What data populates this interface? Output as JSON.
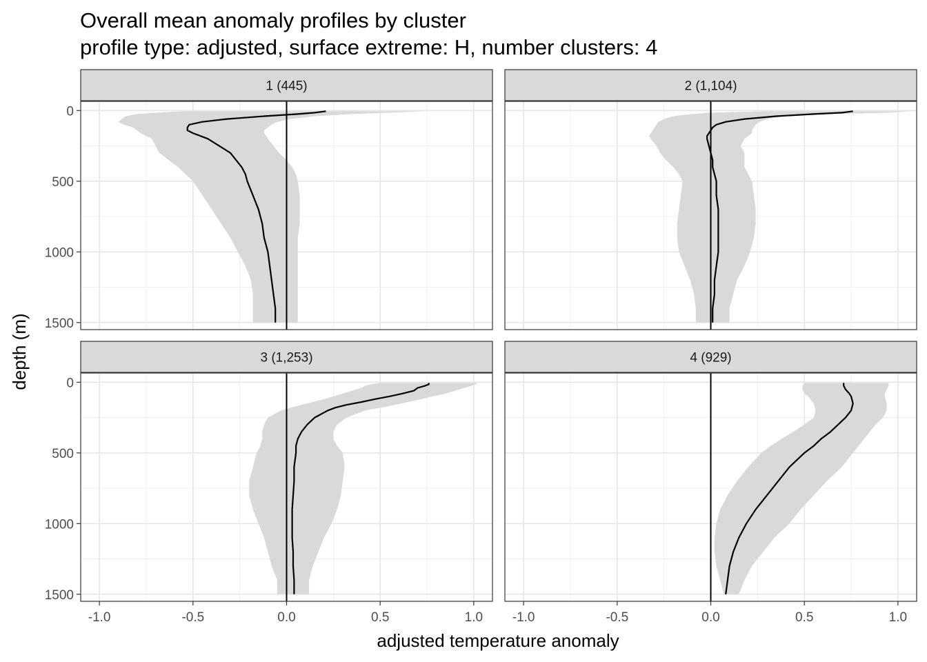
{
  "chart_data": {
    "type": "line",
    "title": "Overall mean anomaly profiles by cluster",
    "subtitle": "profile type: adjusted, surface extreme: H, number clusters: 4",
    "xlabel": "adjusted temperature anomaly",
    "ylabel": "depth (m)",
    "xlim": [
      -1.1,
      1.1
    ],
    "ylim": [
      1550,
      -65
    ],
    "y_reversed": true,
    "x_ticks": [
      -1.0,
      -0.5,
      0.0,
      0.5,
      1.0
    ],
    "x_tick_labels": [
      "-1.0",
      "-0.5",
      "0.0",
      "0.5",
      "1.0"
    ],
    "y_ticks": [
      0,
      500,
      1000,
      1500
    ],
    "y_tick_labels": [
      "0",
      "500",
      "1000",
      "1500"
    ],
    "grid": true,
    "reference_line_x": 0,
    "ribbon_color": "#d9d9d9",
    "line_color": "#000000",
    "strip_color": "#d9d9d9",
    "panels": [
      {
        "label": "1 (445)",
        "depth": [
          5,
          15,
          25,
          40,
          60,
          80,
          100,
          120,
          140,
          160,
          180,
          200,
          250,
          300,
          350,
          400,
          450,
          500,
          600,
          700,
          800,
          900,
          1000,
          1100,
          1200,
          1300,
          1400,
          1500
        ],
        "mean": [
          0.21,
          0.15,
          0.06,
          -0.12,
          -0.32,
          -0.45,
          -0.52,
          -0.53,
          -0.53,
          -0.5,
          -0.46,
          -0.42,
          -0.36,
          -0.3,
          -0.27,
          -0.24,
          -0.22,
          -0.21,
          -0.18,
          -0.15,
          -0.13,
          -0.12,
          -0.1,
          -0.09,
          -0.08,
          -0.07,
          -0.06,
          -0.06
        ],
        "lower": [
          -0.55,
          -0.7,
          -0.8,
          -0.86,
          -0.88,
          -0.9,
          -0.87,
          -0.82,
          -0.8,
          -0.78,
          -0.75,
          -0.72,
          -0.7,
          -0.68,
          -0.63,
          -0.58,
          -0.54,
          -0.5,
          -0.45,
          -0.4,
          -0.35,
          -0.3,
          -0.26,
          -0.22,
          -0.19,
          -0.18,
          -0.18,
          -0.18
        ],
        "upper": [
          0.75,
          0.55,
          0.35,
          0.15,
          0.02,
          -0.05,
          -0.08,
          -0.1,
          -0.12,
          -0.12,
          -0.11,
          -0.1,
          -0.07,
          -0.04,
          0.0,
          0.03,
          0.05,
          0.06,
          0.07,
          0.07,
          0.07,
          0.06,
          0.06,
          0.06,
          0.06,
          0.06,
          0.06,
          0.06
        ]
      },
      {
        "label": "2 (1,104)",
        "depth": [
          5,
          15,
          25,
          40,
          60,
          80,
          100,
          120,
          140,
          160,
          180,
          200,
          250,
          300,
          350,
          400,
          450,
          500,
          600,
          700,
          800,
          900,
          1000,
          1100,
          1200,
          1300,
          1400,
          1500
        ],
        "mean": [
          0.76,
          0.7,
          0.55,
          0.35,
          0.18,
          0.08,
          0.03,
          0.01,
          0.0,
          -0.01,
          -0.02,
          -0.02,
          -0.01,
          0.0,
          0.01,
          0.01,
          0.02,
          0.03,
          0.03,
          0.04,
          0.04,
          0.04,
          0.04,
          0.03,
          0.02,
          0.02,
          0.01,
          0.01
        ],
        "lower": [
          0.3,
          0.0,
          -0.1,
          -0.2,
          -0.25,
          -0.28,
          -0.29,
          -0.3,
          -0.31,
          -0.32,
          -0.33,
          -0.32,
          -0.29,
          -0.27,
          -0.24,
          -0.2,
          -0.17,
          -0.15,
          -0.16,
          -0.17,
          -0.18,
          -0.18,
          -0.17,
          -0.14,
          -0.11,
          -0.09,
          -0.08,
          -0.08
        ],
        "upper": [
          1.08,
          0.95,
          0.65,
          0.4,
          0.3,
          0.26,
          0.24,
          0.23,
          0.22,
          0.22,
          0.2,
          0.18,
          0.16,
          0.18,
          0.18,
          0.18,
          0.2,
          0.22,
          0.23,
          0.24,
          0.24,
          0.23,
          0.21,
          0.18,
          0.14,
          0.12,
          0.1,
          0.1
        ]
      },
      {
        "label": "3 (1,253)",
        "depth": [
          5,
          15,
          25,
          40,
          60,
          80,
          100,
          120,
          140,
          160,
          180,
          200,
          250,
          300,
          350,
          400,
          450,
          500,
          600,
          700,
          800,
          900,
          1000,
          1100,
          1200,
          1300,
          1400,
          1500
        ],
        "mean": [
          0.76,
          0.76,
          0.74,
          0.7,
          0.68,
          0.62,
          0.55,
          0.47,
          0.4,
          0.32,
          0.26,
          0.22,
          0.15,
          0.11,
          0.08,
          0.06,
          0.05,
          0.05,
          0.04,
          0.04,
          0.035,
          0.03,
          0.03,
          0.03,
          0.035,
          0.035,
          0.04,
          0.04
        ],
        "lower": [
          0.5,
          0.45,
          0.42,
          0.4,
          0.35,
          0.3,
          0.25,
          0.2,
          0.14,
          0.08,
          0.02,
          -0.03,
          -0.1,
          -0.12,
          -0.13,
          -0.13,
          -0.14,
          -0.16,
          -0.18,
          -0.2,
          -0.2,
          -0.18,
          -0.15,
          -0.12,
          -0.1,
          -0.08,
          -0.05,
          -0.05
        ],
        "upper": [
          1.02,
          1.01,
          0.99,
          0.95,
          0.9,
          0.85,
          0.78,
          0.72,
          0.65,
          0.58,
          0.5,
          0.42,
          0.32,
          0.27,
          0.25,
          0.25,
          0.27,
          0.3,
          0.31,
          0.3,
          0.29,
          0.27,
          0.24,
          0.2,
          0.17,
          0.14,
          0.12,
          0.12
        ]
      },
      {
        "label": "4 (929)",
        "depth": [
          5,
          25,
          50,
          80,
          100,
          150,
          200,
          250,
          300,
          350,
          400,
          450,
          500,
          600,
          700,
          800,
          900,
          1000,
          1100,
          1200,
          1300,
          1400,
          1500
        ],
        "mean": [
          0.71,
          0.71,
          0.72,
          0.74,
          0.75,
          0.76,
          0.75,
          0.72,
          0.68,
          0.64,
          0.59,
          0.55,
          0.5,
          0.42,
          0.36,
          0.3,
          0.24,
          0.19,
          0.15,
          0.12,
          0.1,
          0.09,
          0.08
        ],
        "lower": [
          0.5,
          0.49,
          0.49,
          0.5,
          0.52,
          0.55,
          0.56,
          0.55,
          0.5,
          0.44,
          0.38,
          0.32,
          0.27,
          0.2,
          0.14,
          0.09,
          0.05,
          0.03,
          0.02,
          0.02,
          0.03,
          0.05,
          0.07
        ],
        "upper": [
          0.95,
          0.95,
          0.94,
          0.93,
          0.93,
          0.94,
          0.94,
          0.92,
          0.88,
          0.85,
          0.82,
          0.79,
          0.76,
          0.7,
          0.62,
          0.55,
          0.48,
          0.42,
          0.34,
          0.28,
          0.22,
          0.18,
          0.15
        ]
      }
    ]
  }
}
